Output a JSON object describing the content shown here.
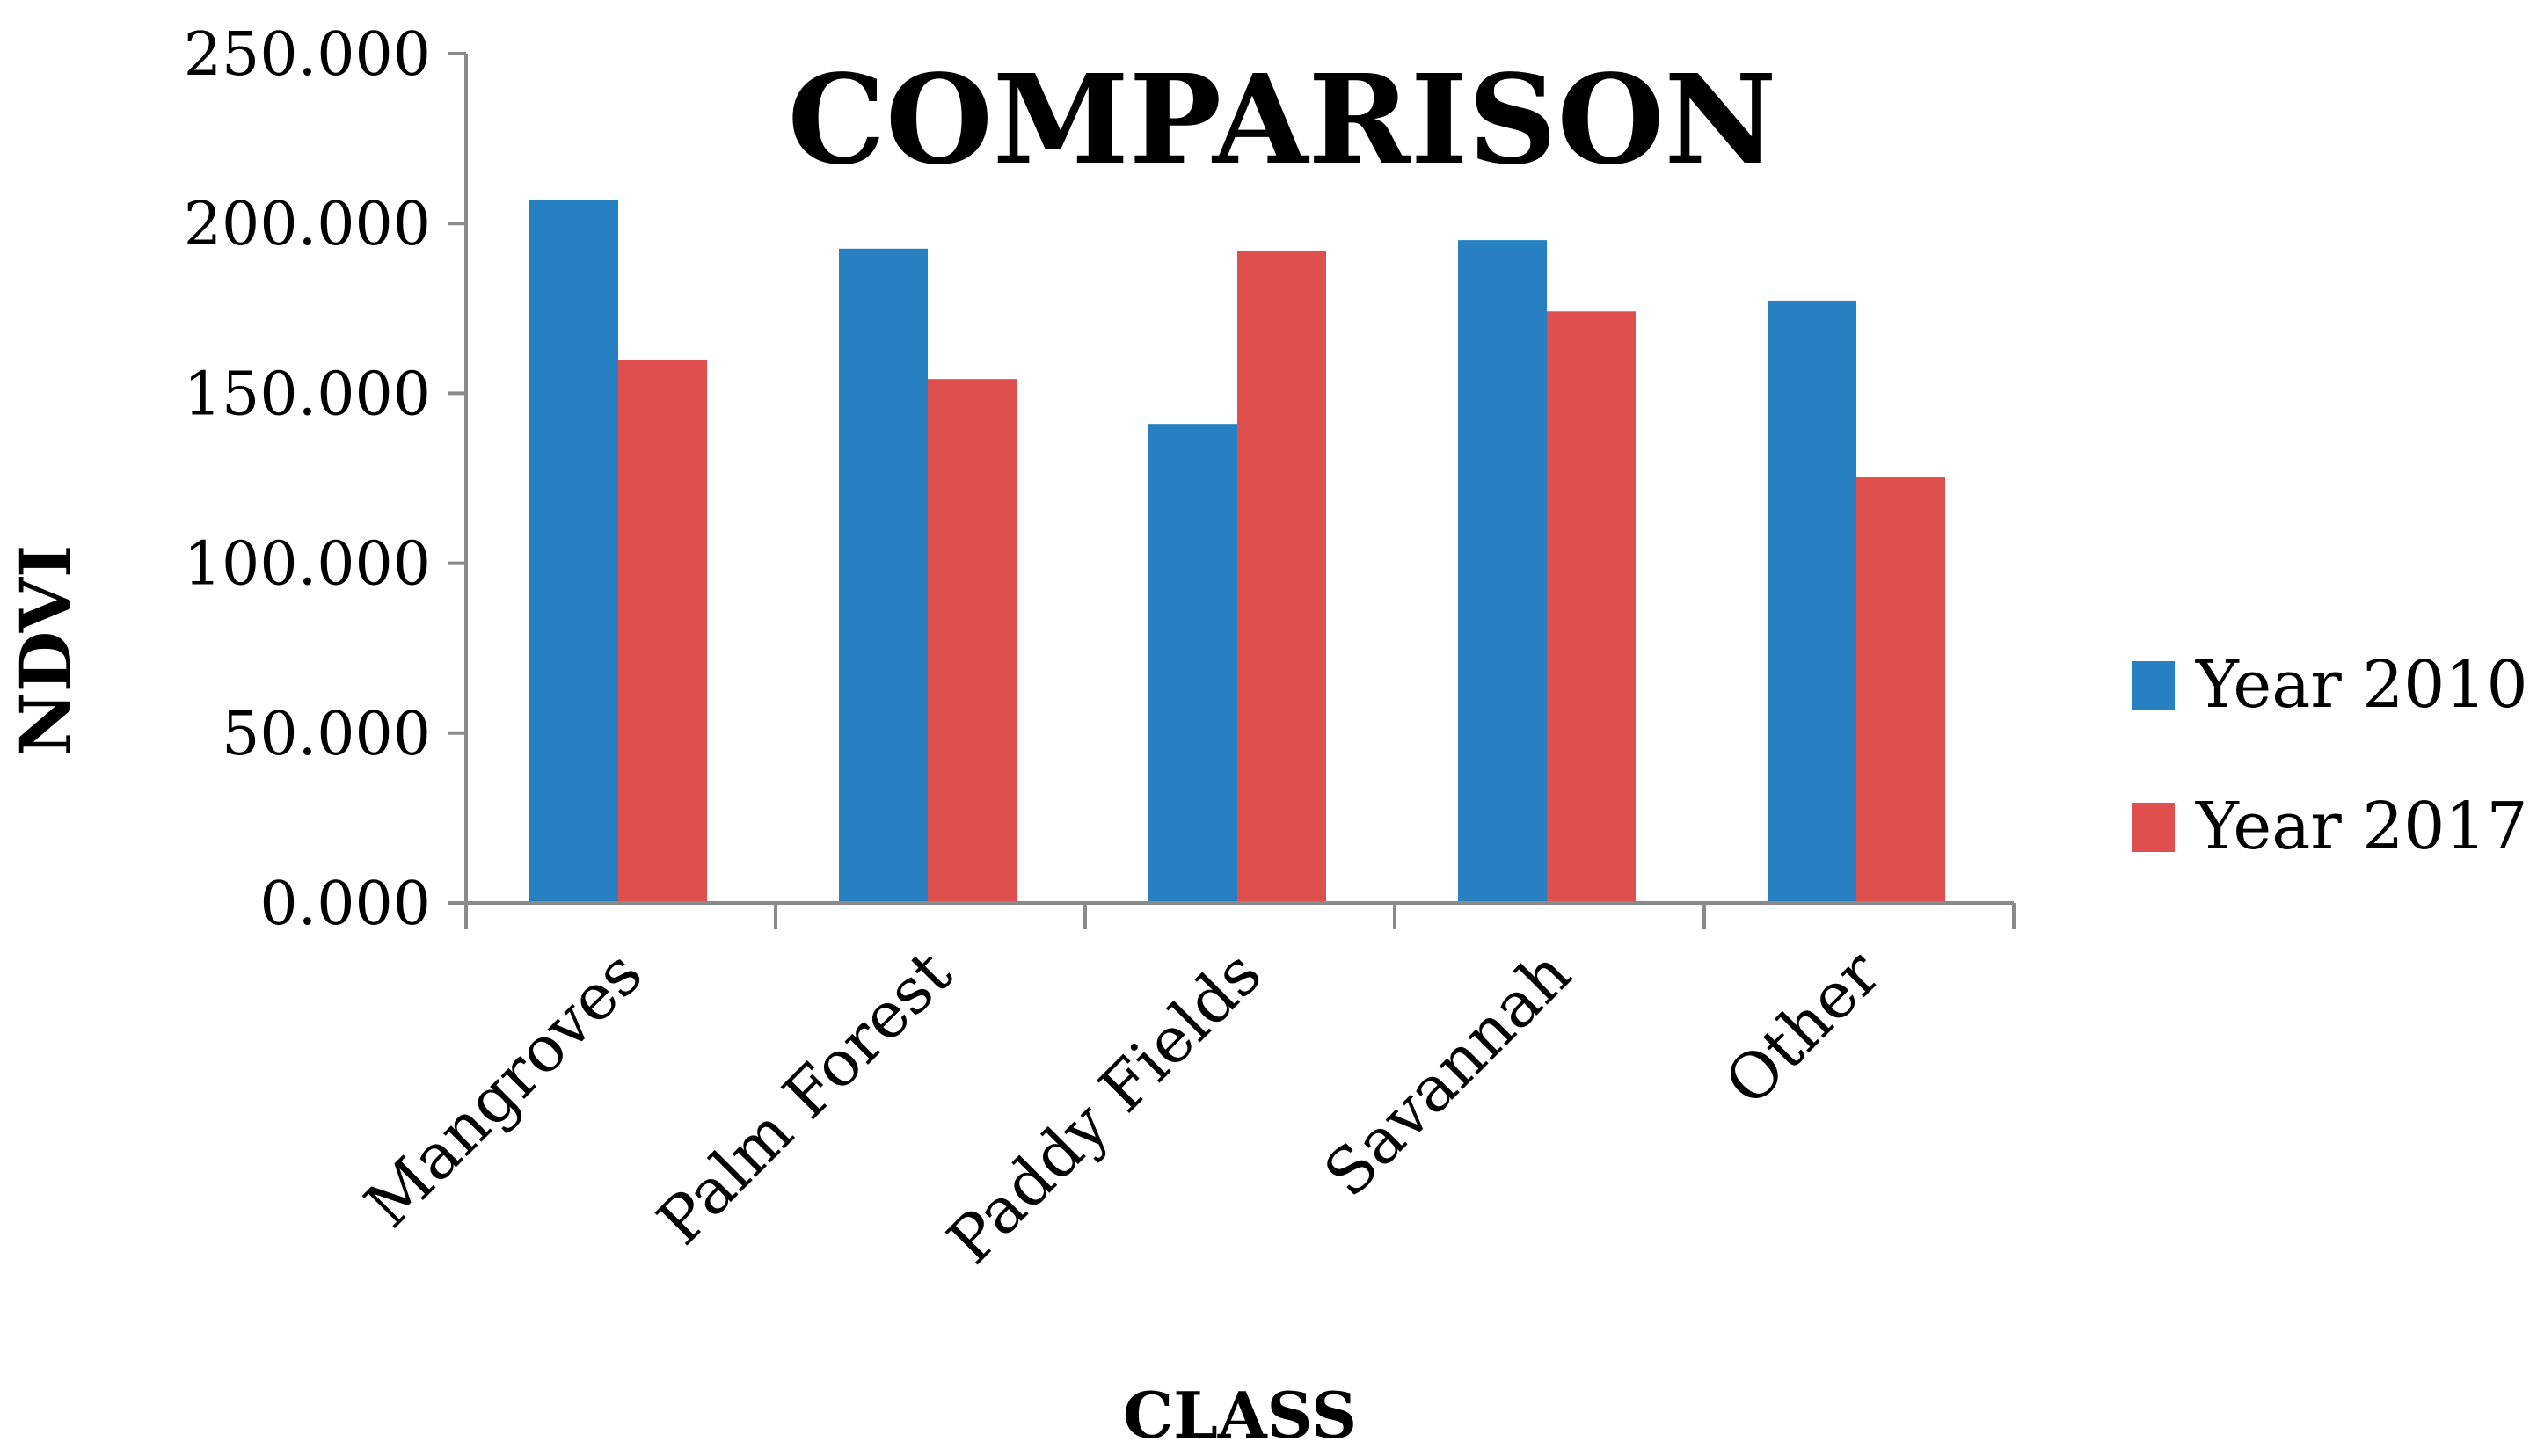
{
  "chart_data": {
    "type": "bar",
    "title": "COMPARISON",
    "xlabel": "CLASS",
    "ylabel": "NDVI",
    "categories": [
      "Mangroves",
      "Palm Forest",
      "Paddy Fields",
      "Savannah",
      "Other"
    ],
    "series": [
      {
        "name": "Year 2010",
        "color": "#2680C2",
        "values": [
          207.0,
          192.6,
          141.0,
          195.1,
          177.3
        ]
      },
      {
        "name": "Year 2017",
        "color": "#DE4F4E",
        "values": [
          159.9,
          154.2,
          192.0,
          174.1,
          125.4
        ]
      }
    ],
    "ylim": [
      0,
      250
    ],
    "yticks": [
      0,
      50,
      100,
      150,
      200,
      250
    ],
    "ytick_labels": [
      "0.000",
      "50.000",
      "100.000",
      "150.000",
      "200.000",
      "250.000"
    ],
    "grid": false,
    "legend_position": "right"
  }
}
